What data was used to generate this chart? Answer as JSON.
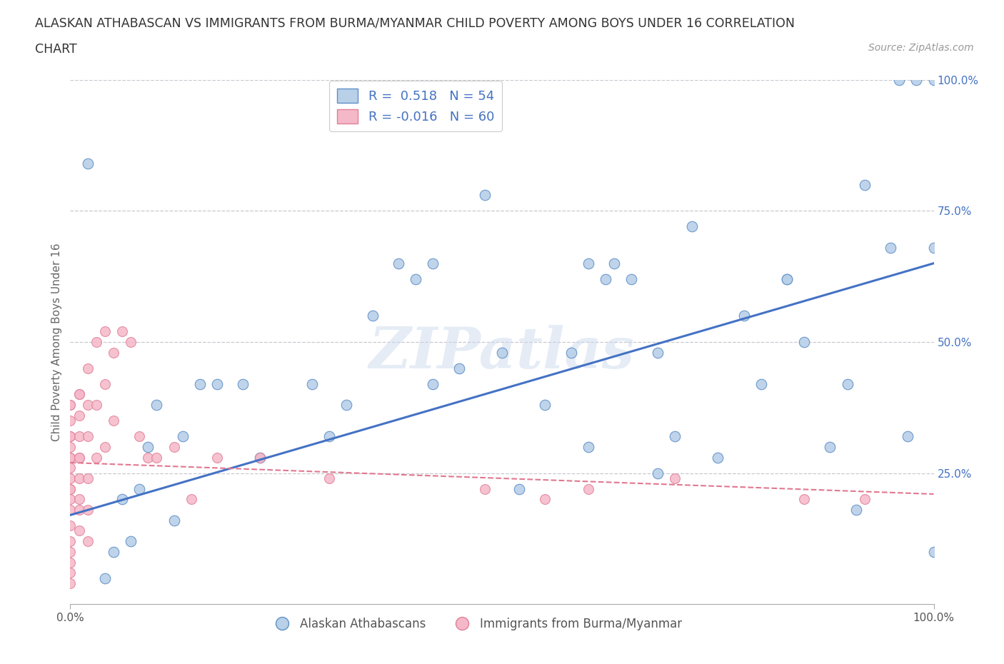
{
  "title_line1": "ALASKAN ATHABASCAN VS IMMIGRANTS FROM BURMA/MYANMAR CHILD POVERTY AMONG BOYS UNDER 16 CORRELATION",
  "title_line2": "CHART",
  "source": "Source: ZipAtlas.com",
  "ylabel": "Child Poverty Among Boys Under 16",
  "watermark": "ZIPatlas",
  "blue_R": 0.518,
  "blue_N": 54,
  "pink_R": -0.016,
  "pink_N": 60,
  "blue_color": "#b8d0e8",
  "pink_color": "#f5b8c8",
  "blue_edge_color": "#6090c8",
  "pink_edge_color": "#e08098",
  "blue_line_color": "#4472c4",
  "pink_line_color": "#e07890",
  "background_color": "#ffffff",
  "grid_color": "#c8c8d0",
  "blue_scatter_x": [
    0.02,
    0.05,
    0.07,
    0.08,
    0.1,
    0.13,
    0.17,
    0.2,
    0.28,
    0.3,
    0.38,
    0.4,
    0.42,
    0.45,
    0.48,
    0.5,
    0.52,
    0.55,
    0.58,
    0.6,
    0.62,
    0.63,
    0.65,
    0.68,
    0.7,
    0.72,
    0.75,
    0.78,
    0.8,
    0.83,
    0.85,
    0.88,
    0.9,
    0.91,
    0.92,
    0.95,
    0.96,
    0.97,
    0.98,
    1.0,
    1.0,
    1.0,
    0.04,
    0.06,
    0.09,
    0.12,
    0.15,
    0.22,
    0.32,
    0.35,
    0.42,
    0.6,
    0.68,
    0.83
  ],
  "blue_scatter_y": [
    0.84,
    0.1,
    0.12,
    0.22,
    0.38,
    0.32,
    0.42,
    0.42,
    0.42,
    0.32,
    0.65,
    0.62,
    0.65,
    0.45,
    0.78,
    0.48,
    0.22,
    0.38,
    0.48,
    0.3,
    0.62,
    0.65,
    0.62,
    0.48,
    0.32,
    0.72,
    0.28,
    0.55,
    0.42,
    0.62,
    0.5,
    0.3,
    0.42,
    0.18,
    0.8,
    0.68,
    1.0,
    0.32,
    1.0,
    1.0,
    0.68,
    0.1,
    0.05,
    0.2,
    0.3,
    0.16,
    0.42,
    0.28,
    0.38,
    0.55,
    0.42,
    0.65,
    0.25,
    0.62
  ],
  "pink_scatter_x": [
    0.0,
    0.0,
    0.0,
    0.0,
    0.0,
    0.0,
    0.0,
    0.0,
    0.0,
    0.0,
    0.0,
    0.0,
    0.0,
    0.0,
    0.0,
    0.0,
    0.0,
    0.0,
    0.0,
    0.0,
    0.01,
    0.01,
    0.01,
    0.01,
    0.01,
    0.01,
    0.01,
    0.01,
    0.01,
    0.01,
    0.02,
    0.02,
    0.02,
    0.02,
    0.02,
    0.02,
    0.03,
    0.03,
    0.03,
    0.04,
    0.04,
    0.04,
    0.05,
    0.05,
    0.06,
    0.07,
    0.08,
    0.09,
    0.1,
    0.12,
    0.14,
    0.17,
    0.22,
    0.3,
    0.48,
    0.55,
    0.6,
    0.7,
    0.85,
    0.92
  ],
  "pink_scatter_y": [
    0.38,
    0.35,
    0.32,
    0.3,
    0.28,
    0.26,
    0.24,
    0.22,
    0.2,
    0.18,
    0.15,
    0.12,
    0.1,
    0.08,
    0.06,
    0.04,
    0.38,
    0.32,
    0.28,
    0.22,
    0.4,
    0.36,
    0.32,
    0.28,
    0.24,
    0.2,
    0.14,
    0.4,
    0.28,
    0.18,
    0.45,
    0.38,
    0.32,
    0.24,
    0.18,
    0.12,
    0.5,
    0.38,
    0.28,
    0.52,
    0.42,
    0.3,
    0.48,
    0.35,
    0.52,
    0.5,
    0.32,
    0.28,
    0.28,
    0.3,
    0.2,
    0.28,
    0.28,
    0.24,
    0.22,
    0.2,
    0.22,
    0.24,
    0.2,
    0.2
  ],
  "xlim": [
    0.0,
    1.0
  ],
  "ylim": [
    0.0,
    1.0
  ],
  "xtick_labels": [
    "0.0%",
    "100.0%"
  ],
  "xtick_vals": [
    0.0,
    1.0
  ],
  "ytick_labels": [
    "100.0%",
    "75.0%",
    "50.0%",
    "25.0%"
  ],
  "ytick_vals": [
    1.0,
    0.75,
    0.5,
    0.25
  ],
  "blue_line_x0": 0.0,
  "blue_line_y0": 0.17,
  "blue_line_x1": 1.0,
  "blue_line_y1": 0.65,
  "pink_line_x0": 0.0,
  "pink_line_y0": 0.27,
  "pink_line_x1": 1.0,
  "pink_line_y1": 0.21,
  "legend_label_blue": "Alaskan Athabascans",
  "legend_label_pink": "Immigrants from Burma/Myanmar"
}
